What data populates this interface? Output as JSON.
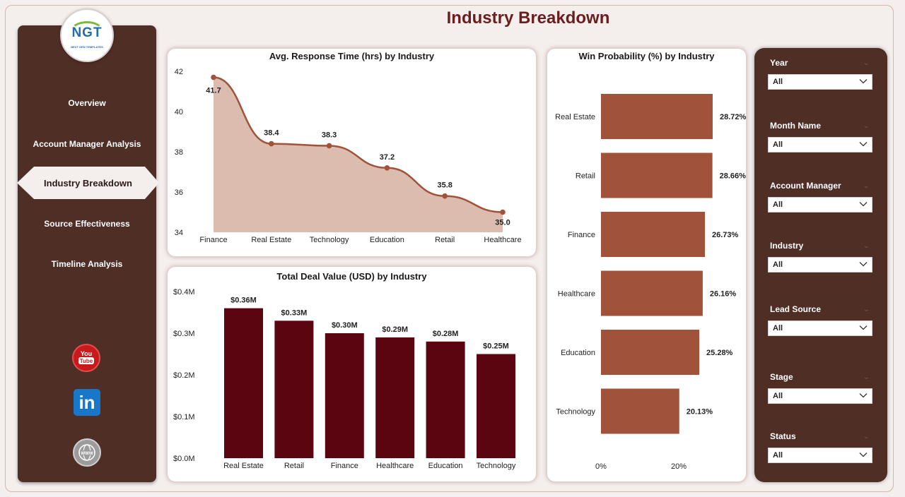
{
  "page": {
    "title": "Industry Breakdown"
  },
  "logo": {
    "text": "NGT",
    "subtitle": "NEXT GEN TEMPLATES"
  },
  "sidebar": {
    "items": [
      {
        "label": "Overview",
        "active": false
      },
      {
        "label": "Account Manager Analysis",
        "active": false
      },
      {
        "label": "Industry Breakdown",
        "active": true
      },
      {
        "label": "Source Effectiveness",
        "active": false
      },
      {
        "label": "Timeline Analysis",
        "active": false
      }
    ],
    "social": [
      {
        "icon": "youtube-icon",
        "label": "You Tube"
      },
      {
        "icon": "linkedin-icon",
        "label": "in"
      },
      {
        "icon": "globe-www-icon",
        "label": "WWW"
      }
    ]
  },
  "colors": {
    "sidebar_bg": "#4f2e26",
    "area_fill": "#dbbcaf",
    "area_line": "#a0523a",
    "deal_bar": "#5a0510",
    "win_bar": "#a0523a",
    "title": "#6b1e1e"
  },
  "filters": [
    {
      "label": "Year",
      "value": "All"
    },
    {
      "label": "Month Name",
      "value": "All"
    },
    {
      "label": "Account Manager",
      "value": "All"
    },
    {
      "label": "Industry",
      "value": "All"
    },
    {
      "label": "Lead Source",
      "value": "All"
    },
    {
      "label": "Stage",
      "value": "All"
    },
    {
      "label": "Status",
      "value": "All"
    }
  ],
  "chart_data": [
    {
      "type": "area",
      "title": "Avg. Response Time (hrs) by Industry",
      "categories": [
        "Finance",
        "Real Estate",
        "Technology",
        "Education",
        "Retail",
        "Healthcare"
      ],
      "values": [
        41.7,
        38.4,
        38.3,
        37.2,
        35.8,
        35.0
      ],
      "data_labels": [
        "41.7",
        "38.4",
        "38.3",
        "37.2",
        "35.8",
        "35.0"
      ],
      "yticks": [
        "42",
        "40",
        "38",
        "36",
        "34"
      ],
      "ylim": [
        34,
        42
      ],
      "grid": false
    },
    {
      "type": "bar",
      "title": "Total Deal Value (USD) by Industry",
      "categories": [
        "Real Estate",
        "Retail",
        "Finance",
        "Healthcare",
        "Education",
        "Technology"
      ],
      "values": [
        0.36,
        0.33,
        0.3,
        0.29,
        0.28,
        0.25
      ],
      "data_labels": [
        "$0.36M",
        "$0.33M",
        "$0.30M",
        "$0.29M",
        "$0.28M",
        "$0.25M"
      ],
      "yticks": [
        "$0.4M",
        "$0.3M",
        "$0.2M",
        "$0.1M",
        "$0.0M"
      ],
      "ylim": [
        0,
        0.4
      ],
      "grid": false
    },
    {
      "type": "bar",
      "orientation": "horizontal",
      "title": "Win Probability (%) by Industry",
      "categories": [
        "Real Estate",
        "Retail",
        "Finance",
        "Healthcare",
        "Education",
        "Technology"
      ],
      "values": [
        28.72,
        28.66,
        26.73,
        26.16,
        25.28,
        20.13
      ],
      "data_labels": [
        "28.72%",
        "28.66%",
        "26.73%",
        "26.16%",
        "25.28%",
        "20.13%"
      ],
      "xticks": [
        "0%",
        "20%"
      ],
      "xlim": [
        0,
        20
      ],
      "grid": false
    }
  ]
}
